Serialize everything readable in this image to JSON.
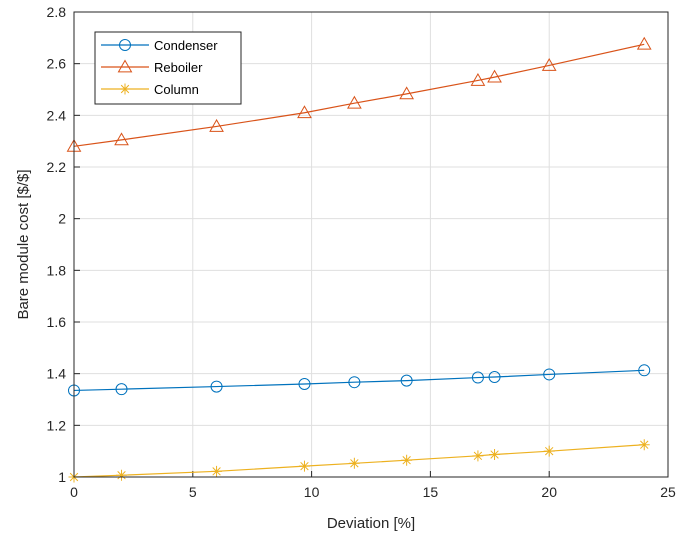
{
  "chart_data": {
    "type": "line",
    "title": "",
    "xlabel": "Deviation [%]",
    "ylabel": "Bare module cost [$/$]",
    "xlim": [
      0,
      25
    ],
    "ylim": [
      1,
      2.8
    ],
    "xticks": [
      0,
      5,
      10,
      15,
      20,
      25
    ],
    "yticks": [
      1,
      1.2,
      1.4,
      1.6,
      1.8,
      2,
      2.2,
      2.4,
      2.6,
      2.8
    ],
    "xtick_labels": [
      "0",
      "5",
      "10",
      "15",
      "20",
      "25"
    ],
    "ytick_labels": [
      "1",
      "1.2",
      "1.4",
      "1.6",
      "1.8",
      "2",
      "2.2",
      "2.4",
      "2.6",
      "2.8"
    ],
    "grid": true,
    "legend_position": "top-left",
    "series": [
      {
        "name": "Condenser",
        "color": "#0072BD",
        "marker": "circle",
        "x": [
          0,
          2,
          6,
          9.7,
          11.8,
          14,
          17,
          17.7,
          20,
          24
        ],
        "y": [
          1.335,
          1.34,
          1.35,
          1.36,
          1.367,
          1.373,
          1.385,
          1.387,
          1.397,
          1.413
        ]
      },
      {
        "name": "Reboiler",
        "color": "#D95319",
        "marker": "triangle",
        "x": [
          0,
          2,
          6,
          9.7,
          11.8,
          14,
          17,
          17.7,
          20,
          24
        ],
        "y": [
          2.28,
          2.305,
          2.357,
          2.41,
          2.447,
          2.483,
          2.535,
          2.548,
          2.593,
          2.675
        ]
      },
      {
        "name": "Column",
        "color": "#EDB120",
        "marker": "asterisk",
        "x": [
          0,
          2,
          6,
          9.7,
          11.8,
          14,
          17,
          17.7,
          20,
          24
        ],
        "y": [
          1.0,
          1.007,
          1.022,
          1.042,
          1.053,
          1.065,
          1.082,
          1.087,
          1.1,
          1.125
        ]
      }
    ]
  }
}
